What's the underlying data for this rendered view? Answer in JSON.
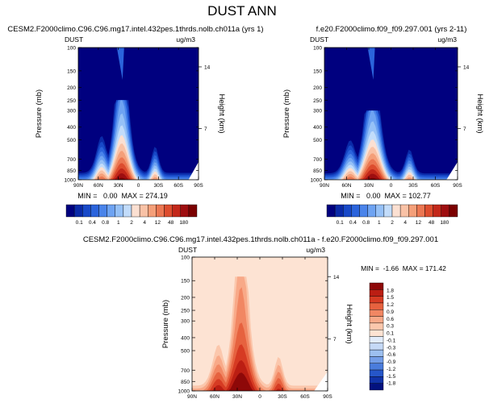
{
  "page": {
    "title": "DUST ANN",
    "diff_title": "CESM2.F2000climo.C96.C96.mg17.intel.432pes.1thrds.nolb.ch011a - f.e20.F2000climo.f09_f09.297.001"
  },
  "colors": {
    "blues": [
      "#00007f",
      "#0a2aa8",
      "#1849c8",
      "#2b64dc",
      "#4a84ea",
      "#6ea3f2",
      "#96c1f7",
      "#c2dcfa"
    ],
    "reds": [
      "#fbe0d2",
      "#f9c2a6",
      "#f49f79",
      "#eb7752",
      "#dd4d2e",
      "#c3281a",
      "#9e0e10",
      "#7b0000"
    ],
    "diff_pos": [
      "#fde3d3",
      "#fbc7ac",
      "#f8a988",
      "#f18763",
      "#e6623f",
      "#d63b23",
      "#bb1e13",
      "#8e0808"
    ],
    "diff_neg": [
      "#e2ecfb",
      "#c5d9f6",
      "#9dc0f0",
      "#749ee8",
      "#4a7cdc",
      "#2656c9",
      "#1133a9",
      "#03127f"
    ]
  },
  "chart_data": [
    {
      "type": "heatmap",
      "plot_id": "left",
      "title": "CESM2.F2000climo.C96.C96.mg17.intel.432pes.1thrds.nolb.ch011a (yrs 1)",
      "field_label": "DUST",
      "units": "ug/m3",
      "xlabel": "",
      "ylabel": "Pressure (mb)",
      "y2label": "Height (km)",
      "x_ticks": [
        "90N",
        "60N",
        "30N",
        "0",
        "30S",
        "60S",
        "90S"
      ],
      "y_ticks": [
        "100",
        "150",
        "200",
        "250",
        "300",
        "400",
        "500",
        "700",
        "850",
        "1000"
      ],
      "y2_ticks": [
        "14",
        "7"
      ],
      "xlim": [
        90,
        -90
      ],
      "ylim": [
        1000,
        100
      ],
      "min": 0.0,
      "max": 274.19,
      "stats_text": "MIN =   0.00  MAX = 274.19",
      "levels": [
        "0.1",
        "0.4",
        "0.8",
        "1",
        "2",
        "4",
        "12",
        "48",
        "180"
      ],
      "plume": {
        "peak_lat": 23,
        "peak_value": 274.19,
        "top_pressure": 250
      }
    },
    {
      "type": "heatmap",
      "plot_id": "right",
      "title": "f.e20.F2000climo.f09_f09.297.001 (yrs 2-11)",
      "field_label": "DUST",
      "units": "ug/m3",
      "xlabel": "",
      "ylabel": "Pressure (mb)",
      "y2label": "Height (km)",
      "x_ticks": [
        "90N",
        "60N",
        "30N",
        "0",
        "30S",
        "60S",
        "90S"
      ],
      "y_ticks": [
        "100",
        "150",
        "200",
        "250",
        "300",
        "400",
        "500",
        "700",
        "850",
        "1000"
      ],
      "y2_ticks": [
        "14",
        "7"
      ],
      "xlim": [
        90,
        -90
      ],
      "ylim": [
        1000,
        100
      ],
      "min": 0.0,
      "max": 102.77,
      "stats_text": "MIN =   0.00  MAX = 102.77",
      "levels": [
        "0.1",
        "0.4",
        "0.8",
        "1",
        "2",
        "4",
        "12",
        "48",
        "180"
      ],
      "plume": {
        "peak_lat": 23,
        "peak_value": 102.77,
        "top_pressure": 300
      }
    },
    {
      "type": "heatmap",
      "plot_id": "diff",
      "title": "CESM2.F2000climo.C96.C96.mg17.intel.432pes.1thrds.nolb.ch011a - f.e20.F2000climo.f09_f09.297.001",
      "field_label": "DUST",
      "units": "ug/m3",
      "xlabel": "",
      "ylabel": "Pressure (mb)",
      "y2label": "Height (km)",
      "x_ticks": [
        "90N",
        "60N",
        "30N",
        "0",
        "30S",
        "60S",
        "90S"
      ],
      "y_ticks": [
        "100",
        "150",
        "200",
        "250",
        "300",
        "400",
        "500",
        "700",
        "850",
        "1000"
      ],
      "y2_ticks": [
        "14",
        "7"
      ],
      "xlim": [
        90,
        -90
      ],
      "ylim": [
        1000,
        100
      ],
      "min": -1.66,
      "max": 171.42,
      "stats_text": "MIN =  -1.66  MAX = 171.42",
      "levels": [
        "1.8",
        "1.5",
        "1.2",
        "0.9",
        "0.6",
        "0.3",
        "0.1",
        "-0.1",
        "-0.3",
        "-0.6",
        "-0.9",
        "-1.2",
        "-1.5",
        "-1.8"
      ]
    }
  ]
}
